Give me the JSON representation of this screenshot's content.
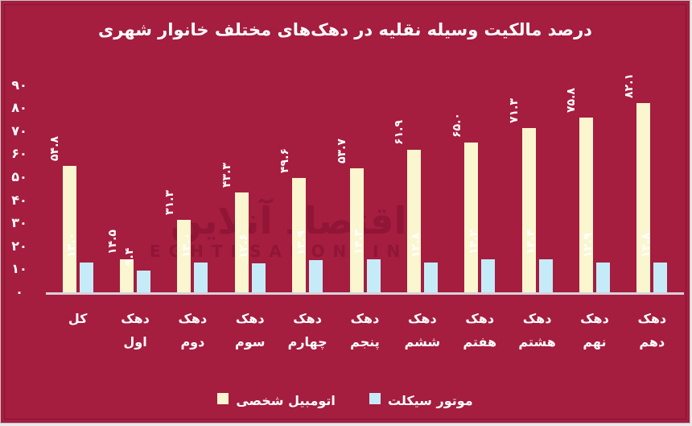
{
  "title": "درصد مالکیت وسیله نقلیه در دهک‌های مختلف خانوار شهری",
  "watermark": {
    "fa": "اقتصاد آنلاین",
    "en": "EGHTESADONLINE"
  },
  "colors": {
    "background": "#A51D3F",
    "automobile_bar": "#FAF6CF",
    "motorcycle_bar": "#C6EBF8",
    "axis_line": "#D6D2DA",
    "text": "#FFFFFF",
    "watermark": "#7C0F2F"
  },
  "chart_data": {
    "type": "bar",
    "title": "درصد مالکیت وسیله نقلیه در دهک‌های مختلف خانوار شهری",
    "categories": [
      "کل",
      "دهک اول",
      "دهک دوم",
      "دهک سوم",
      "دهک چهارم",
      "دهک پنجم",
      "دهک ششم",
      "دهک هفتم",
      "دهک هشتم",
      "دهک نهم",
      "دهک دهم"
    ],
    "series": [
      {
        "name": "اتومبیل شخصی",
        "color": "#FAF6CF",
        "values": [
          54.8,
          14.5,
          31.3,
          43.3,
          49.6,
          53.7,
          61.9,
          65.0,
          71.3,
          75.8,
          82.1
        ],
        "labels_fa": [
          "۵۴.۸",
          "۱۴.۵",
          "۳۱.۳",
          "۴۳.۳",
          "۴۹.۶",
          "۵۳.۷",
          "۶۱.۹",
          "۶۵.۰",
          "۷۱.۳",
          "۷۵.۸",
          "۸۲.۱"
        ]
      },
      {
        "name": "موتور سیکلت",
        "color": "#C6EBF8",
        "values": [
          13.0,
          9.4,
          13.0,
          12.6,
          13.9,
          14.3,
          12.8,
          14.2,
          14.4,
          12.9,
          12.8
        ],
        "labels_fa": [
          "۱۳.۰",
          "۹.۴",
          "۱۳.۰",
          "۱۲.۶",
          "۱۳.۹",
          "۱۴.۳",
          "۱۲.۸",
          "۱۴.۲",
          "۱۴.۴",
          "۱۲.۹",
          "۱۲.۸"
        ]
      }
    ],
    "yticks": {
      "values": [
        0,
        10,
        20,
        30,
        40,
        50,
        60,
        70,
        80,
        90
      ],
      "labels_fa": [
        "۰",
        "۱۰",
        "۲۰",
        "۳۰",
        "۴۰",
        "۵۰",
        "۶۰",
        "۷۰",
        "۸۰",
        "۹۰"
      ]
    },
    "ylim": [
      0,
      90
    ],
    "grid": false,
    "legend_position": "bottom",
    "value_labels": "rotated-90-above-bars"
  },
  "legend": {
    "items": [
      {
        "label": "اتومبیل شخصی",
        "color": "#FAF6CF"
      },
      {
        "label": "موتور سیکلت",
        "color": "#C6EBF8"
      }
    ]
  }
}
